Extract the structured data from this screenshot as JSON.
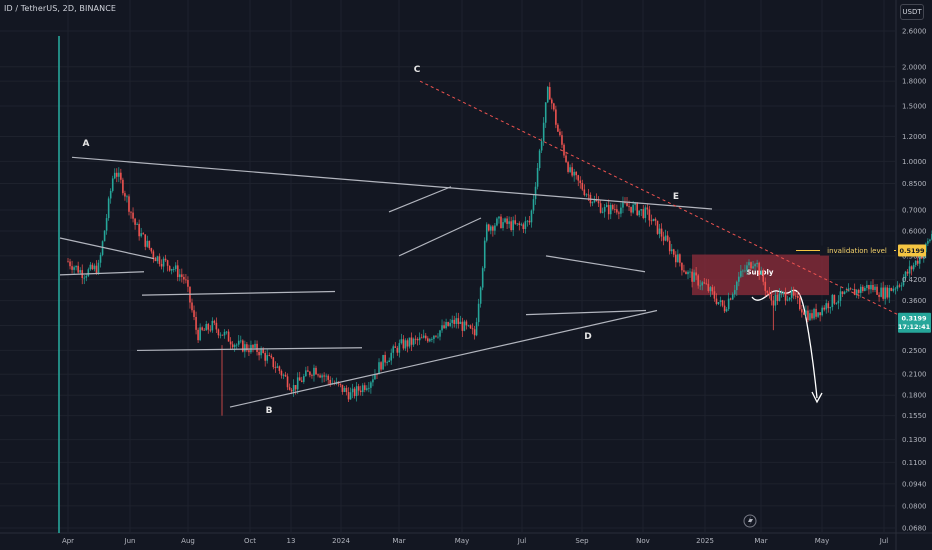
{
  "header": {
    "symbol_line": "ID / TetherUS, 2D, BINANCE",
    "currency_button": "USDT"
  },
  "chart_data": {
    "type": "candlestick",
    "title": "ID / TetherUS, 2D, BINANCE",
    "y_scale": "log",
    "ylim": [
      0.068,
      2.6
    ],
    "y_ticks": [
      "2.6000",
      "2.0000",
      "1.8000",
      "1.5000",
      "1.2000",
      "1.0000",
      "0.8500",
      "0.7000",
      "0.6000",
      "0.5000",
      "0.4200",
      "0.3600",
      "0.3000",
      "0.2500",
      "0.2100",
      "0.1800",
      "0.1550",
      "0.1300",
      "0.1100",
      "0.0940",
      "0.0800",
      "0.0680"
    ],
    "x_ticks": [
      "Apr",
      "Jun",
      "Aug",
      "Oct",
      "13",
      "2024",
      "Mar",
      "May",
      "Jul",
      "Sep",
      "Nov",
      "2025",
      "Mar",
      "May",
      "Jul"
    ],
    "current_price": "0.3199",
    "countdown": "17:12:41",
    "invalidation_price": "0.5199",
    "annotations": {
      "points": [
        "A",
        "B",
        "C",
        "D",
        "E"
      ],
      "invalidation_label": "invalidation level",
      "supply_label": "Supply"
    },
    "grid": true,
    "colors": {
      "up": "#26a69a",
      "down": "#ef5350",
      "trendline": "#b2b5be",
      "resistance_dotted": "#ef5350",
      "supply_zone": "#8b2b3a",
      "invalidation": "#f5c542",
      "projection": "#ffffff",
      "price_tag": "#26a69a"
    }
  },
  "footer": {
    "snap_icon": "lightning-icon"
  }
}
